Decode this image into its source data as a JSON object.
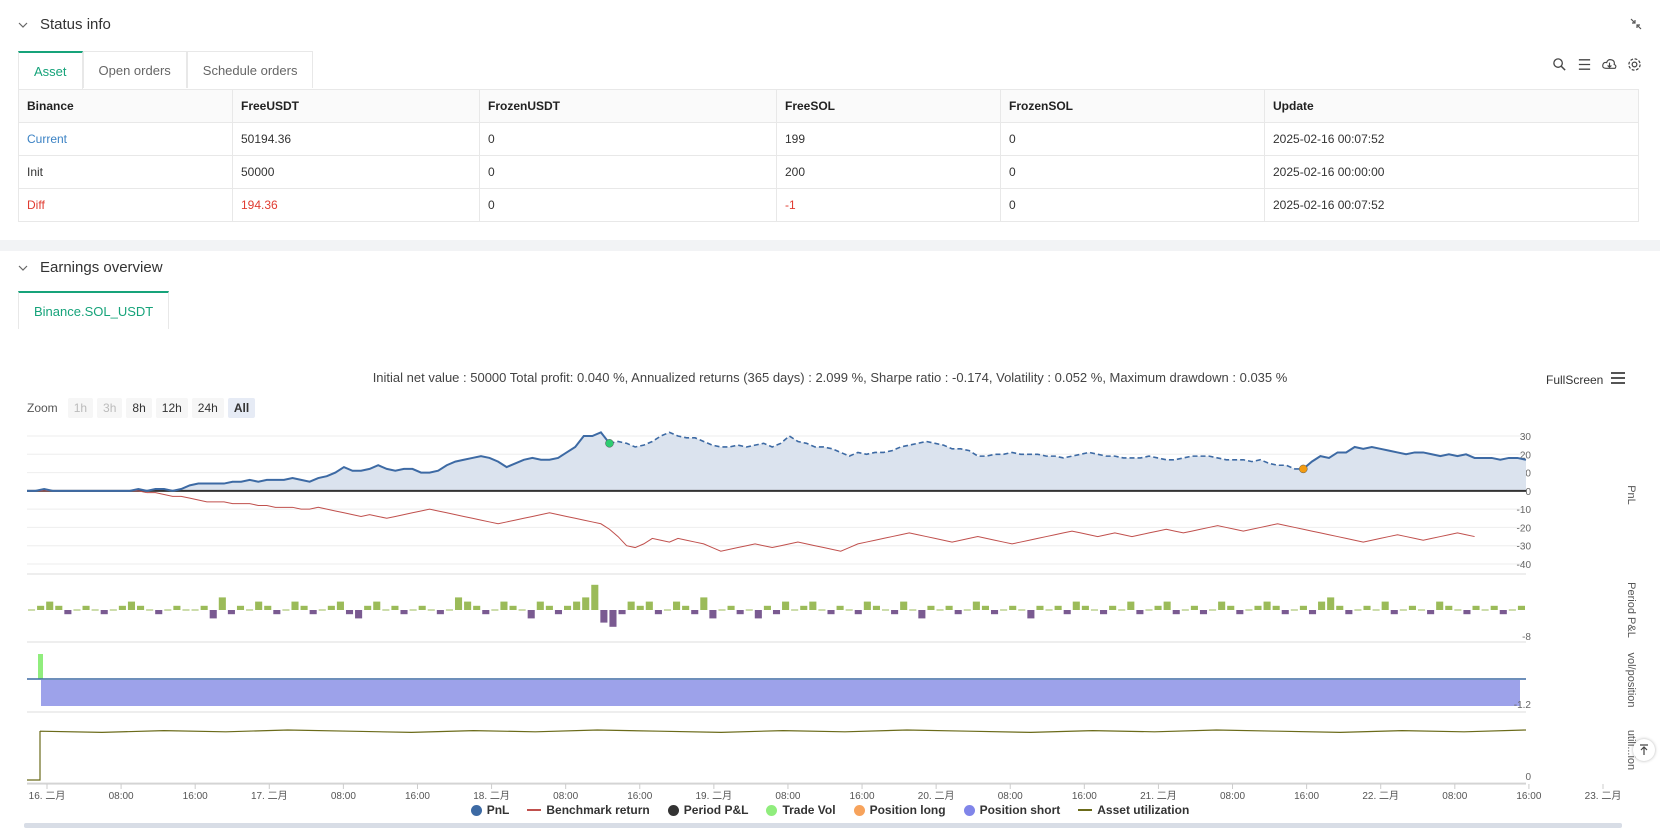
{
  "status": {
    "title": "Status info",
    "tabs": [
      "Asset",
      "Open orders",
      "Schedule orders"
    ],
    "table": {
      "headers": [
        "Binance",
        "FreeUSDT",
        "FrozenUSDT",
        "FreeSOL",
        "FrozenSOL",
        "Update"
      ],
      "rows": [
        {
          "label": "Current",
          "freeusdt": "50194.36",
          "frozenusdt": "0",
          "freesol": "199",
          "frozensol": "0",
          "update": "2025-02-16 00:07:52"
        },
        {
          "label": "Init",
          "freeusdt": "50000",
          "frozenusdt": "0",
          "freesol": "200",
          "frozensol": "0",
          "update": "2025-02-16 00:00:00"
        },
        {
          "label": "Diff",
          "freeusdt": "194.36",
          "frozenusdt": "0",
          "freesol": "-1",
          "frozensol": "0",
          "update": "2025-02-16 00:07:52"
        }
      ]
    }
  },
  "earnings": {
    "title": "Earnings overview",
    "tab": "Binance.SOL_USDT",
    "summary": "Initial net value : 50000 Total profit: 0.040 %, Annualized returns (365 days) : 2.099 %, Sharpe ratio : -0.174, Volatility : 0.052 %, Maximum drawdown : 0.035 %",
    "fullscreen": "FullScreen",
    "zoom": {
      "label": "Zoom",
      "buttons": [
        "1h",
        "3h",
        "8h",
        "12h",
        "24h",
        "All"
      ],
      "selected": "All",
      "disabled": [
        "1h",
        "3h"
      ]
    },
    "legend": [
      {
        "name": "PnL",
        "color": "#3d6aa4",
        "kind": "dot"
      },
      {
        "name": "Benchmark return",
        "color": "#c0504d",
        "kind": "line"
      },
      {
        "name": "Period P&L",
        "color": "#333333",
        "kind": "dot"
      },
      {
        "name": "Trade Vol",
        "color": "#90ed7d",
        "kind": "dot"
      },
      {
        "name": "Position long",
        "color": "#f7a35c",
        "kind": "dot"
      },
      {
        "name": "Position short",
        "color": "#8085e9",
        "kind": "dot"
      },
      {
        "name": "Asset utilization",
        "color": "#6b6b1a",
        "kind": "line"
      }
    ]
  },
  "chart_data": {
    "type": "line",
    "x_ticks": [
      "16. 二月",
      "08:00",
      "16:00",
      "17. 二月",
      "08:00",
      "16:00",
      "18. 二月",
      "08:00",
      "16:00",
      "19. 二月",
      "08:00",
      "16:00",
      "20. 二月",
      "08:00",
      "16:00",
      "21. 二月",
      "08:00",
      "16:00",
      "22. 二月",
      "08:00",
      "16:00",
      "23. 二月"
    ],
    "panes": [
      {
        "name": "PnL",
        "y_ticks": [
          "30",
          "20",
          "10",
          "0",
          "-10",
          "-20",
          "-30",
          "-40"
        ],
        "ylim": [
          -40,
          30
        ]
      },
      {
        "name": "Period P&L",
        "y_ticks": [
          "-8"
        ]
      },
      {
        "name": "vol/position",
        "y_ticks": [
          "-1.2"
        ]
      },
      {
        "name": "utili...ion",
        "y_ticks": [
          "0"
        ]
      }
    ],
    "series": [
      {
        "name": "PnL",
        "color": "#3d6aa4",
        "values": [
          0,
          0,
          1,
          0,
          0,
          0,
          0,
          0,
          0,
          0,
          0,
          0,
          0,
          1,
          0,
          1,
          1,
          0,
          1,
          3,
          4,
          4,
          4,
          4,
          5,
          5,
          6,
          5,
          6,
          6,
          6,
          7,
          6,
          5,
          7,
          8,
          10,
          13,
          11,
          11,
          12,
          14,
          12,
          11,
          12,
          12,
          10,
          10,
          11,
          14,
          16,
          17,
          18,
          19,
          18,
          16,
          13,
          15,
          17,
          18,
          17,
          17,
          18,
          21,
          24,
          30,
          30,
          32,
          26,
          27,
          26,
          24,
          25,
          27,
          30,
          32,
          30,
          29,
          29,
          27,
          25,
          24,
          24,
          25,
          24,
          25,
          26,
          24,
          26,
          30,
          27,
          26,
          24,
          24,
          23,
          21,
          19,
          21,
          20,
          21,
          21,
          22,
          24,
          25,
          26,
          27,
          26,
          25,
          23,
          23,
          22,
          19,
          19,
          20,
          20,
          21,
          20,
          20,
          20,
          19,
          19,
          18,
          19,
          20,
          21,
          20,
          19,
          19,
          18,
          18,
          18,
          19,
          18,
          17,
          17,
          18,
          19,
          19,
          19,
          18,
          17,
          17,
          17,
          16,
          17,
          15,
          14,
          14,
          12,
          12,
          16,
          19,
          18,
          21,
          21,
          24,
          23,
          24,
          23,
          22,
          21,
          20,
          21,
          21,
          20,
          19,
          20,
          19,
          20,
          18,
          18,
          18,
          17,
          18,
          18,
          17
        ]
      },
      {
        "name": "Benchmark return",
        "color": "#c0504d",
        "values": [
          0,
          0,
          0,
          0,
          0,
          0,
          0,
          0,
          0,
          0,
          0,
          0,
          0,
          0,
          -1,
          -1,
          -2,
          -3,
          -3,
          -4,
          -5,
          -6,
          -6,
          -6,
          -7,
          -7,
          -7,
          -8,
          -8,
          -9,
          -9,
          -9,
          -10,
          -10,
          -9,
          -10,
          -11,
          -12,
          -13,
          -14,
          -13,
          -14,
          -15,
          -14,
          -13,
          -12,
          -11,
          -10,
          -11,
          -12,
          -13,
          -14,
          -15,
          -16,
          -17,
          -18,
          -17,
          -16,
          -15,
          -14,
          -13,
          -12,
          -13,
          -14,
          -15,
          -16,
          -17,
          -18,
          -21,
          -25,
          -30,
          -31,
          -29,
          -26,
          -27,
          -28,
          -26,
          -27,
          -28,
          -29,
          -31,
          -33,
          -32,
          -31,
          -30,
          -29,
          -30,
          -31,
          -30,
          -29,
          -28,
          -29,
          -30,
          -31,
          -32,
          -33,
          -31,
          -29,
          -28,
          -27,
          -26,
          -25,
          -24,
          -23,
          -24,
          -25,
          -26,
          -27,
          -28,
          -27,
          -26,
          -25,
          -26,
          -27,
          -28,
          -29,
          -28,
          -27,
          -26,
          -25,
          -24,
          -23,
          -22,
          -23,
          -24,
          -25,
          -24,
          -23,
          -24,
          -25,
          -24,
          -23,
          -22,
          -21,
          -22,
          -23,
          -22,
          -21,
          -20,
          -19,
          -20,
          -21,
          -22,
          -21,
          -20,
          -19,
          -18,
          -19,
          -20,
          -21,
          -22,
          -23,
          -24,
          -25,
          -26,
          -27,
          -28,
          -27,
          -26,
          -25,
          -24,
          -25,
          -26,
          -27,
          -26,
          -25,
          -24,
          -23,
          -24,
          -25
        ]
      },
      {
        "name": "Period P&L",
        "color_pos": "#9bbb59",
        "color_neg": "#7a5a91",
        "values": [
          0,
          1,
          2,
          1,
          -1,
          0,
          1,
          0,
          -1,
          0,
          1,
          2,
          1,
          0,
          -1,
          0,
          1,
          0,
          0,
          1,
          -2,
          3,
          -1,
          1,
          0,
          2,
          1,
          -1,
          0,
          2,
          1,
          -1,
          0,
          1,
          2,
          -1,
          -2,
          1,
          2,
          0,
          1,
          -1,
          0,
          1,
          0,
          -1,
          0,
          3,
          2,
          1,
          -1,
          0,
          2,
          1,
          0,
          -2,
          2,
          1,
          -1,
          1,
          2,
          3,
          6,
          -3,
          -4,
          -1,
          2,
          1,
          2,
          -1,
          0,
          2,
          1,
          -1,
          3,
          -2,
          0,
          1,
          -1,
          0,
          -2,
          1,
          -1,
          2,
          0,
          1,
          2,
          0,
          -1,
          1,
          0,
          -1,
          2,
          1,
          0,
          -1,
          2,
          0,
          -2,
          1,
          0,
          1,
          -1,
          0,
          2,
          1,
          -1,
          0,
          1,
          0,
          -2,
          1,
          0,
          1,
          -1,
          2,
          1,
          0,
          -1,
          1,
          0,
          2,
          -1,
          0,
          1,
          2,
          -1,
          0,
          1,
          -1,
          0,
          2,
          1,
          -1,
          0,
          1,
          2,
          1,
          -1,
          0,
          1,
          -1,
          2,
          3,
          1,
          -1,
          0,
          1,
          0,
          2,
          -1,
          0,
          1,
          0,
          -1,
          2,
          1,
          0,
          -1,
          1,
          0,
          1,
          -1,
          0,
          1
        ]
      },
      {
        "name": "Trade Vol",
        "color": "#90ed7d",
        "values": [
          1
        ]
      },
      {
        "name": "Position short",
        "color": "#8085e9",
        "values": [
          -1
        ]
      },
      {
        "name": "Asset utilization",
        "color": "#6b6b1a",
        "values": [
          0,
          1,
          1,
          1,
          1,
          1,
          1,
          1,
          1,
          1,
          1,
          1,
          1,
          1,
          1,
          1,
          1,
          1,
          1,
          1,
          1,
          1,
          1,
          1,
          1,
          1
        ]
      }
    ],
    "markers": [
      {
        "series": "PnL",
        "x_index": 68,
        "color": "#2ecc71"
      },
      {
        "series": "PnL",
        "x_index": 149,
        "color": "#f39c12"
      }
    ]
  }
}
